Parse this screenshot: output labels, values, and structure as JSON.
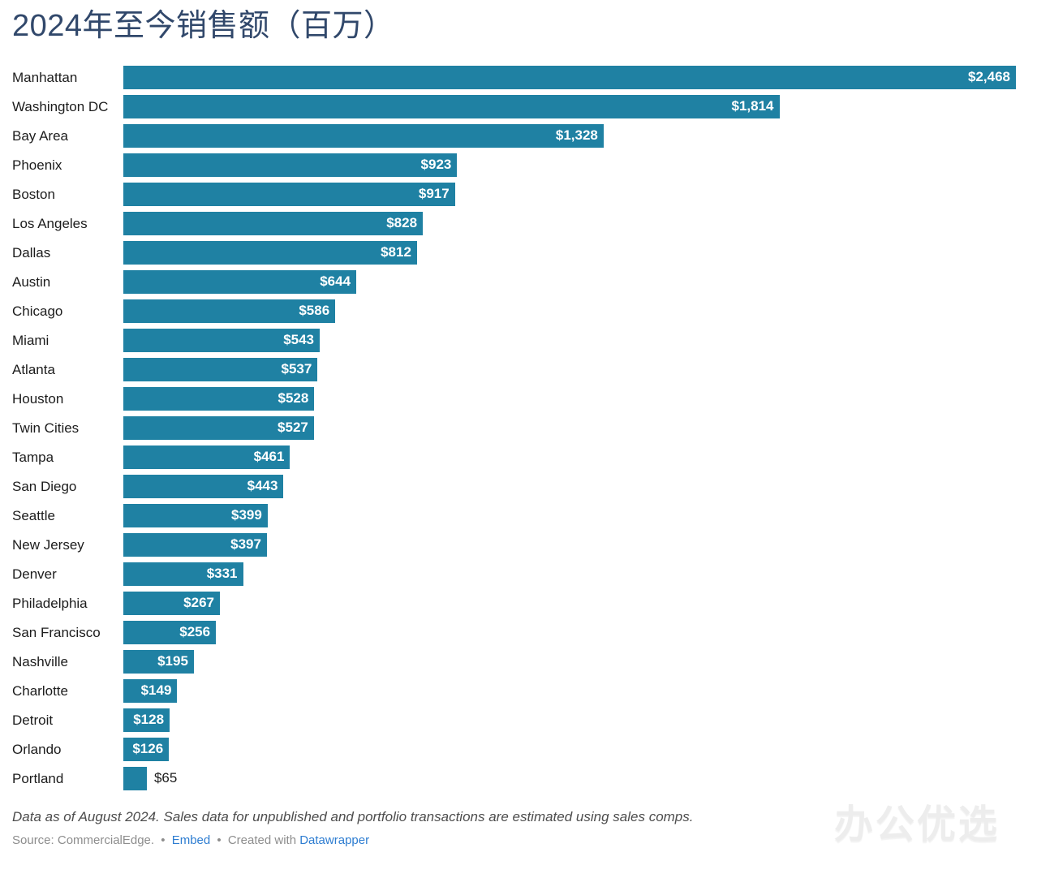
{
  "title": "2024年至今销售额（百万）",
  "colors": {
    "bar": "#1f81a3",
    "title": "#31486b",
    "link": "#2e7dd1",
    "value_label_inside": "#ffffff",
    "value_label_outside": "#1c1c1c"
  },
  "chart_data": {
    "type": "bar",
    "orientation": "horizontal",
    "title": "2024年至今销售额（百万）",
    "xlabel": "",
    "ylabel": "",
    "xlim": [
      0,
      2468
    ],
    "grid": false,
    "legend": false,
    "categories": [
      "Manhattan",
      "Washington DC",
      "Bay Area",
      "Phoenix",
      "Boston",
      "Los Angeles",
      "Dallas",
      "Austin",
      "Chicago",
      "Miami",
      "Atlanta",
      "Houston",
      "Twin Cities",
      "Tampa",
      "San Diego",
      "Seattle",
      "New Jersey",
      "Denver",
      "Philadelphia",
      "San Francisco",
      "Nashville",
      "Charlotte",
      "Detroit",
      "Orlando",
      "Portland"
    ],
    "values": [
      2468,
      1814,
      1328,
      923,
      917,
      828,
      812,
      644,
      586,
      543,
      537,
      528,
      527,
      461,
      443,
      399,
      397,
      331,
      267,
      256,
      195,
      149,
      128,
      126,
      65
    ],
    "value_labels": [
      "$2,468",
      "$1,814",
      "$1,328",
      "$923",
      "$917",
      "$828",
      "$812",
      "$644",
      "$586",
      "$543",
      "$537",
      "$528",
      "$527",
      "$461",
      "$443",
      "$399",
      "$397",
      "$331",
      "$267",
      "$256",
      "$195",
      "$149",
      "$128",
      "$126",
      "$65"
    ]
  },
  "footer": {
    "note": "Data as of August 2024. Sales data for unpublished and portfolio transactions are estimated using sales comps.",
    "source_prefix": "Source: CommercialEdge.",
    "bullet1": "•",
    "embed_label": "Embed",
    "bullet2": "•",
    "created_with": "Created with",
    "datawrapper_label": "Datawrapper"
  },
  "watermark": "办公优选"
}
